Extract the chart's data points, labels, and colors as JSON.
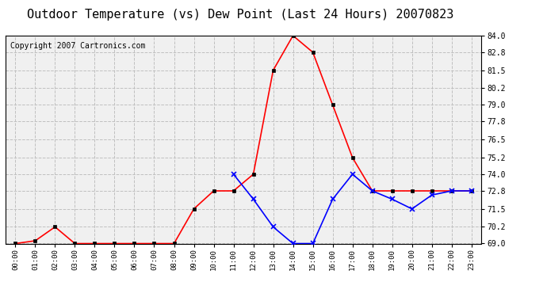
{
  "title": "Outdoor Temperature (vs) Dew Point (Last 24 Hours) 20070823",
  "copyright": "Copyright 2007 Cartronics.com",
  "x_labels": [
    "00:00",
    "01:00",
    "02:00",
    "03:00",
    "04:00",
    "05:00",
    "06:00",
    "07:00",
    "08:00",
    "09:00",
    "10:00",
    "11:00",
    "12:00",
    "13:00",
    "14:00",
    "15:00",
    "16:00",
    "17:00",
    "18:00",
    "19:00",
    "20:00",
    "21:00",
    "22:00",
    "23:00"
  ],
  "temp_data": [
    69.0,
    69.2,
    70.2,
    69.0,
    69.0,
    69.0,
    69.0,
    69.0,
    69.0,
    71.5,
    72.8,
    72.8,
    74.0,
    81.5,
    84.0,
    82.8,
    79.0,
    75.2,
    72.8,
    72.8,
    72.8,
    72.8,
    72.8,
    72.8
  ],
  "dew_data": [
    null,
    null,
    null,
    null,
    null,
    null,
    null,
    null,
    null,
    null,
    null,
    74.0,
    72.2,
    70.2,
    69.0,
    69.0,
    72.2,
    74.0,
    72.8,
    72.2,
    71.5,
    72.5,
    72.8,
    72.8
  ],
  "temp_color": "#ff0000",
  "dew_color": "#0000ff",
  "bg_color": "#ffffff",
  "plot_bg_color": "#f0f0f0",
  "grid_color": "#c0c0c0",
  "ylim_min": 69.0,
  "ylim_max": 84.0,
  "yticks": [
    69.0,
    70.2,
    71.5,
    72.8,
    74.0,
    75.2,
    76.5,
    77.8,
    79.0,
    80.2,
    81.5,
    82.8,
    84.0
  ],
  "title_fontsize": 11,
  "copyright_fontsize": 7,
  "marker_size": 3,
  "line_width": 1.2
}
